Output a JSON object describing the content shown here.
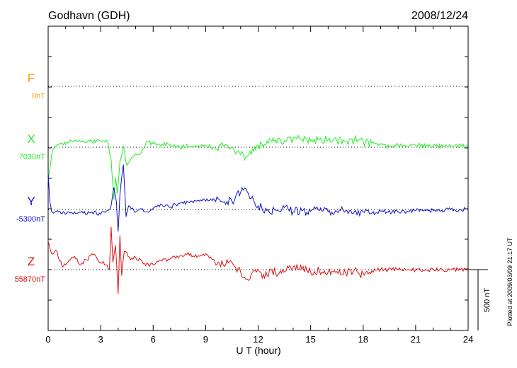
{
  "header": {
    "station": "Godhavn (GDH)",
    "date": "2008/12/24"
  },
  "plotted_note": "Plotted at 2009/03/09 21:17 UT",
  "scale_label": "500 nT",
  "chart_data": {
    "type": "line",
    "title": "Godhavn (GDH)",
    "date": "2008/12/24",
    "xlabel": "U T (hour)",
    "xlim": [
      0,
      24
    ],
    "xticks": [
      0,
      3,
      6,
      9,
      12,
      15,
      18,
      21,
      24
    ],
    "x_tick_labels": [
      "0",
      "3",
      "6",
      "9",
      "12",
      "15",
      "18",
      "21",
      "24"
    ],
    "grid": "dotted baselines at each component",
    "scale_bar_nT": 500,
    "units": "nT",
    "series": [
      {
        "name": "F",
        "baseline": "0nT",
        "color": "#f0a000",
        "visible_data": false,
        "x": [],
        "y": []
      },
      {
        "name": "X",
        "baseline": "7030nT",
        "color": "#22ee22",
        "x": [
          0,
          0.2,
          0.5,
          0.8,
          1.2,
          1.6,
          2.0,
          2.5,
          3.0,
          3.4,
          3.6,
          3.75,
          3.85,
          3.95,
          4.1,
          4.3,
          4.5,
          4.8,
          5.2,
          5.6,
          6.0,
          6.5,
          7.0,
          7.5,
          8.0,
          8.5,
          9.0,
          9.5,
          10.0,
          10.5,
          11.0,
          11.3,
          11.6,
          12.0,
          12.5,
          13.0,
          13.5,
          14.0,
          14.5,
          15.0,
          15.5,
          16.0,
          16.5,
          17.0,
          17.5,
          18.0,
          18.5,
          19.0,
          19.5,
          20.0,
          20.5,
          21.0,
          22.0,
          23.0,
          24.0
        ],
        "y": [
          -280,
          -60,
          20,
          30,
          45,
          55,
          50,
          45,
          50,
          50,
          -100,
          -430,
          -250,
          -380,
          -120,
          10,
          -150,
          -80,
          -60,
          40,
          30,
          25,
          20,
          0,
          10,
          5,
          15,
          -5,
          10,
          0,
          -60,
          -80,
          -60,
          15,
          50,
          60,
          50,
          70,
          60,
          50,
          65,
          60,
          55,
          50,
          60,
          45,
          35,
          20,
          5,
          20,
          10,
          15,
          10,
          10,
          10
        ]
      },
      {
        "name": "Y",
        "baseline": "-5300nT",
        "color": "#1010cc",
        "x": [
          0,
          0.1,
          0.2,
          0.3,
          0.6,
          1.0,
          1.5,
          2.0,
          2.5,
          3.0,
          3.4,
          3.6,
          3.75,
          3.9,
          4.0,
          4.1,
          4.3,
          4.45,
          4.6,
          4.9,
          5.2,
          5.6,
          6.0,
          6.5,
          7.0,
          7.5,
          8.0,
          8.5,
          9.0,
          9.5,
          10.0,
          10.5,
          11.0,
          11.3,
          11.6,
          12.0,
          12.5,
          13.0,
          13.5,
          14.0,
          14.5,
          15.0,
          15.5,
          16.0,
          16.5,
          17.0,
          17.5,
          17.8,
          18.0,
          18.5,
          19.0,
          20.0,
          21.0,
          22.0,
          23.0,
          24.0
        ],
        "y": [
          300,
          60,
          -20,
          -30,
          -20,
          -40,
          -20,
          -30,
          -20,
          -40,
          -10,
          30,
          180,
          60,
          -180,
          120,
          370,
          -60,
          30,
          -10,
          0,
          -20,
          10,
          40,
          20,
          50,
          60,
          70,
          70,
          80,
          60,
          70,
          140,
          170,
          90,
          30,
          -10,
          -5,
          15,
          -20,
          -10,
          -15,
          -10,
          -20,
          -15,
          -10,
          -20,
          -50,
          -20,
          -30,
          -15,
          -20,
          -10,
          -10,
          0,
          0
        ]
      },
      {
        "name": "Z",
        "baseline": "55870nT",
        "color": "#dd1111",
        "x": [
          0,
          0.2,
          0.5,
          0.8,
          1.2,
          1.5,
          1.8,
          2.2,
          2.5,
          3.0,
          3.3,
          3.5,
          3.6,
          3.7,
          3.85,
          4.0,
          4.1,
          4.2,
          4.35,
          4.5,
          4.7,
          5.0,
          5.5,
          6.0,
          6.5,
          7.0,
          7.5,
          8.0,
          8.5,
          9.0,
          9.5,
          10.0,
          10.5,
          11.0,
          11.3,
          11.6,
          11.9,
          12.3,
          12.8,
          13.2,
          13.6,
          14.0,
          14.5,
          15.0,
          15.5,
          16.0,
          16.5,
          17.0,
          17.5,
          17.8,
          18.0,
          18.5,
          19.0,
          20.0,
          21.0,
          22.0,
          23.0,
          24.0
        ],
        "y": [
          230,
          130,
          150,
          20,
          80,
          110,
          40,
          80,
          130,
          60,
          40,
          0,
          350,
          60,
          200,
          -200,
          280,
          -50,
          150,
          140,
          80,
          100,
          50,
          40,
          70,
          90,
          110,
          140,
          100,
          130,
          80,
          40,
          60,
          -20,
          -80,
          -40,
          -20,
          -40,
          -10,
          -30,
          -10,
          20,
          0,
          -20,
          -10,
          -20,
          -15,
          -30,
          0,
          -40,
          -30,
          -10,
          0,
          0,
          0,
          0,
          0,
          0
        ]
      }
    ]
  }
}
